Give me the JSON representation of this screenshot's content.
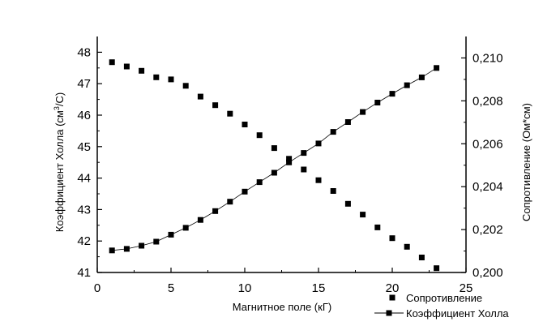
{
  "chart_data": {
    "type": "scatter",
    "title": "",
    "xlabel": "Магнитное поле (кГ)",
    "ylabel_left": "Коэффициент Холла (см³/С)",
    "ylabel_left_parts": {
      "prefix": "Коэффициент Холла (см",
      "sup": "3",
      "suffix": "/С)"
    },
    "ylabel_right": "Сопротивление (Ом*см)",
    "xlim": [
      0,
      25
    ],
    "ylim_left": [
      41,
      48.5
    ],
    "ylim_right": [
      0.2,
      0.211
    ],
    "x_ticks": [
      0,
      5,
      10,
      15,
      20,
      25
    ],
    "x_tick_labels": [
      "0",
      "5",
      "10",
      "15",
      "20",
      "25"
    ],
    "y_left_ticks": [
      41,
      42,
      43,
      44,
      45,
      46,
      47,
      48
    ],
    "y_left_tick_labels": [
      "41",
      "42",
      "43",
      "44",
      "45",
      "46",
      "47",
      "48"
    ],
    "y_right_ticks": [
      0.2,
      0.202,
      0.204,
      0.206,
      0.208,
      0.21
    ],
    "y_right_tick_labels": [
      "0,200",
      "0,202",
      "0,204",
      "0,206",
      "0,208",
      "0,210"
    ],
    "grid": false,
    "legend_position": "bottom-right",
    "series": [
      {
        "name": "Сопротивление",
        "axis": "right",
        "style": "markers",
        "x": [
          1,
          2,
          3,
          4,
          5,
          6,
          7,
          8,
          9,
          10,
          11,
          12,
          13,
          14,
          15,
          16,
          17,
          18,
          19,
          20,
          21,
          22,
          23
        ],
        "values": [
          0.2098,
          0.2096,
          0.2094,
          0.2091,
          0.209,
          0.2087,
          0.2082,
          0.2078,
          0.2074,
          0.2069,
          0.2064,
          0.2058,
          0.2053,
          0.2048,
          0.2043,
          0.2038,
          0.2032,
          0.2027,
          0.2021,
          0.2016,
          0.2012,
          0.2007,
          0.2002
        ]
      },
      {
        "name": "Коэффициент Холла",
        "axis": "left",
        "style": "line+markers",
        "x": [
          1,
          2,
          3,
          4,
          5,
          6,
          7,
          8,
          9,
          10,
          11,
          12,
          13,
          14,
          15,
          16,
          17,
          18,
          19,
          20,
          21,
          22,
          23
        ],
        "values": [
          41.7,
          41.75,
          41.85,
          41.98,
          42.2,
          42.42,
          42.67,
          42.95,
          43.25,
          43.57,
          43.87,
          44.17,
          44.5,
          44.8,
          45.1,
          45.47,
          45.78,
          46.1,
          46.4,
          46.68,
          46.95,
          47.2,
          47.5
        ]
      }
    ]
  }
}
